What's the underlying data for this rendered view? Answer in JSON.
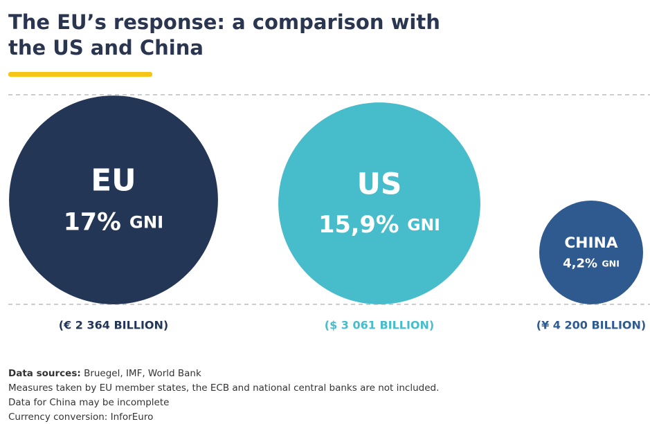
{
  "chart_data": {
    "type": "bubble",
    "title_lines": [
      "The EU’s response: a comparison with",
      "the US and China"
    ],
    "categories": [
      "EU",
      "US",
      "CHINA"
    ],
    "values": [
      17,
      15.9,
      4.2
    ],
    "value_labels": [
      "17%",
      "15,9%",
      "4,2%"
    ],
    "unit": "GNI",
    "amounts": [
      "(€ 2 364 BILLION)",
      "($ 3 061 BILLION)",
      "(¥ 4 200 BILLION)"
    ],
    "colors": [
      "#243656",
      "#47bccb",
      "#2f5a8f"
    ],
    "notes": {
      "sources_label": "Data sources:",
      "sources": "Bruegel, IMF, World Bank",
      "lines": [
        "Measures taken by EU member states, the ECB and national central banks are not included.",
        "Data for China may be incomplete",
        "Currency conversion: InforEuro"
      ]
    }
  }
}
